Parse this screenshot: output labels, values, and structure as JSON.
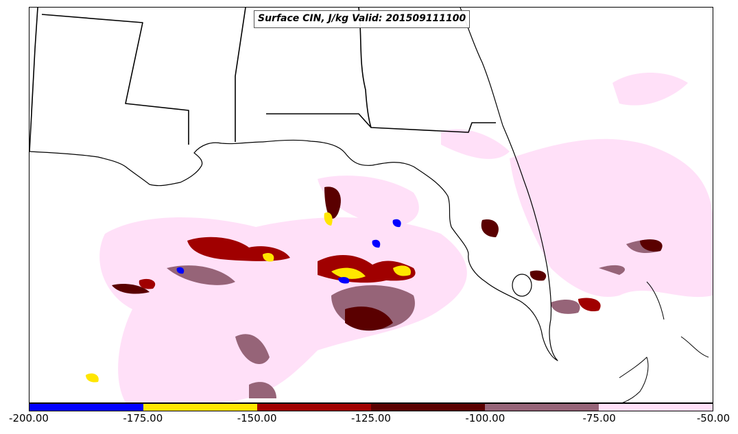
{
  "title": "Surface CIN, J/kg Valid: 201509111100",
  "colorbar": {
    "colors": [
      "#0000ff",
      "#ffe600",
      "#a00000",
      "#5a0000",
      "#966478",
      "#ffe0f8"
    ],
    "ticks": [
      "-200.00",
      "-175.00",
      "-150.00",
      "-125.00",
      "-100.00",
      "-75.00",
      "-50.00"
    ]
  },
  "colors": {
    "boundary": "#000000",
    "water": "#ffffff"
  }
}
